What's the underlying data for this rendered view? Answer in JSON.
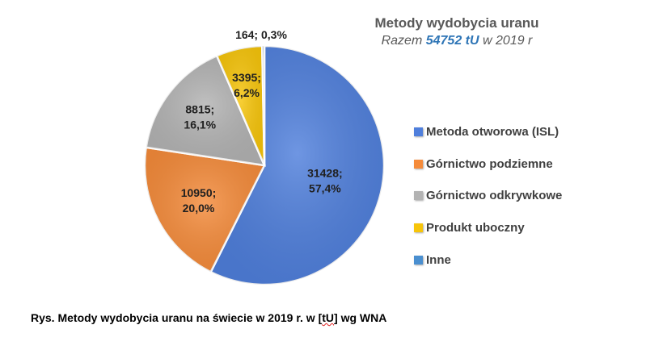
{
  "chart_data": {
    "type": "pie",
    "title": "Metody wydobycia uranu",
    "subtitle_prefix": "Razem",
    "subtitle_total": "54752 tU",
    "subtitle_suffix": "w 2019 r",
    "slices": [
      {
        "name": "Metoda otworowa (ISL)",
        "value": 31428,
        "percent": "57,4%",
        "color": "#4f7fdc"
      },
      {
        "name": "Górnictwo podziemne",
        "value": 10950,
        "percent": "20,0%",
        "color": "#f58b3a"
      },
      {
        "name": "Górnictwo odkrywkowe",
        "value": 8815,
        "percent": "16,1%",
        "color": "#b3b3b3"
      },
      {
        "name": "Produkt uboczny",
        "value": 3395,
        "percent": "6,2%",
        "color": "#f7c50a"
      },
      {
        "name": "Inne",
        "value": 164,
        "percent": "0,3%",
        "color": "#4a8fd0"
      }
    ],
    "legend_position": "right"
  },
  "caption": {
    "before": "Rys. Metody wydobycia uranu na świecie w 2019 r. w [",
    "unit": "tU",
    "after": "] wg WNA"
  }
}
